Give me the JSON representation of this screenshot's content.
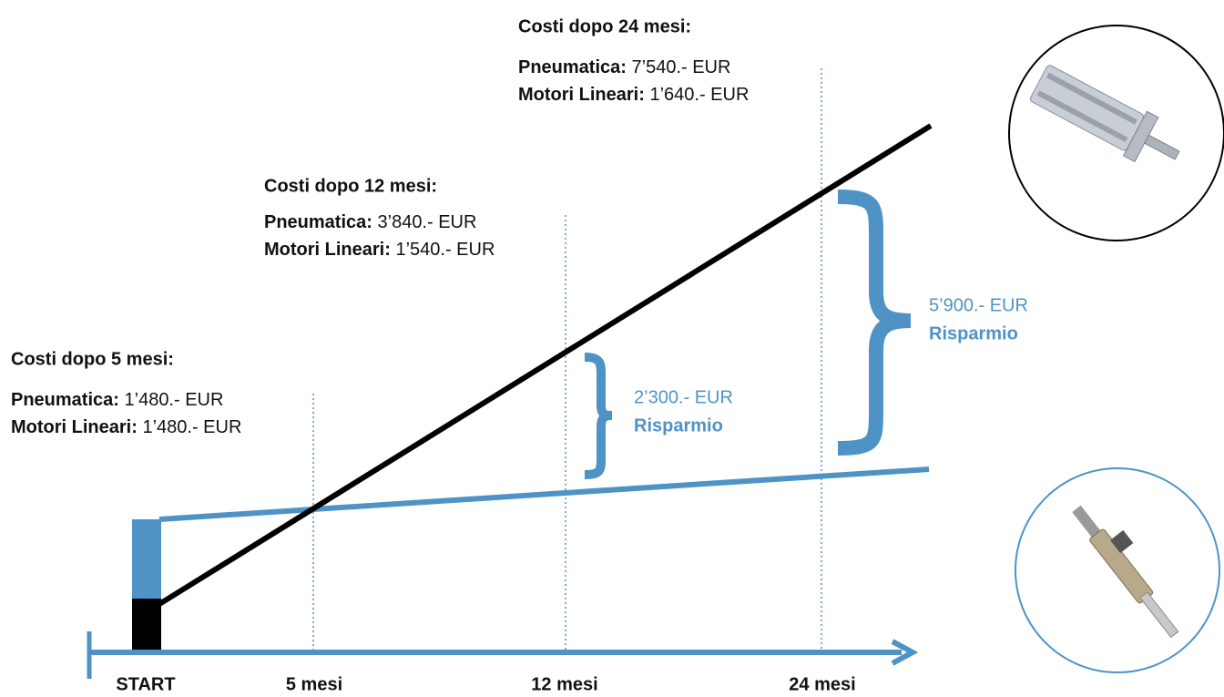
{
  "cost_blocks": [
    {
      "title": "Costi dopo 5 mesi:",
      "rows": [
        {
          "label": "Pneumatica:",
          "value": "1’480.- EUR"
        },
        {
          "label": "Motori Lineari:",
          "value": "1’480.- EUR"
        }
      ]
    },
    {
      "title": "Costi dopo 12 mesi:",
      "rows": [
        {
          "label": "Pneumatica:",
          "value": "3’840.- EUR"
        },
        {
          "label": "Motori Lineari:",
          "value": "1’540.- EUR"
        }
      ]
    },
    {
      "title": "Costi dopo 24 mesi:",
      "rows": [
        {
          "label": "Pneumatica:",
          "value": "7’540.- EUR"
        },
        {
          "label": "Motori Lineari:",
          "value": "1’640.- EUR"
        }
      ]
    }
  ],
  "savings": [
    {
      "amount": "2’300.- EUR",
      "label": "Risparmio"
    },
    {
      "amount": "5’900.- EUR",
      "label": "Risparmio"
    }
  ],
  "timeline": {
    "labels": [
      "START",
      "5 mesi",
      "12 mesi",
      "24 mesi"
    ]
  }
}
